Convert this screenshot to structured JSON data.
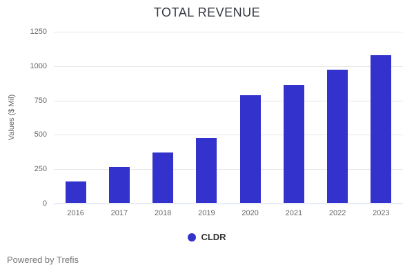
{
  "title": "TOTAL REVENUE",
  "y_axis": {
    "title": "Values ($ Mil)",
    "ticks": [
      0,
      250,
      500,
      750,
      1000,
      1250
    ]
  },
  "legend": {
    "label": "CLDR"
  },
  "footer": {
    "text": "Powered by Trefis"
  },
  "colors": {
    "bar": "#3432cd",
    "legend_marker": "#3432cd",
    "gridline": "#e6e6e6",
    "axis_line": "#ccd6eb",
    "title_text": "#333740",
    "tick_text": "#666666",
    "footer_text": "#757575"
  },
  "chart_data": {
    "type": "bar",
    "categories": [
      "2016",
      "2017",
      "2018",
      "2019",
      "2020",
      "2021",
      "2022",
      "2023"
    ],
    "series": [
      {
        "name": "CLDR",
        "values": [
          160,
          265,
          370,
          475,
          790,
          865,
          975,
          1080
        ]
      }
    ],
    "title": "TOTAL REVENUE",
    "xlabel": "",
    "ylabel": "Values ($ Mil)",
    "ylim": [
      0,
      1250
    ],
    "grid": true,
    "legend_position": "bottom"
  }
}
